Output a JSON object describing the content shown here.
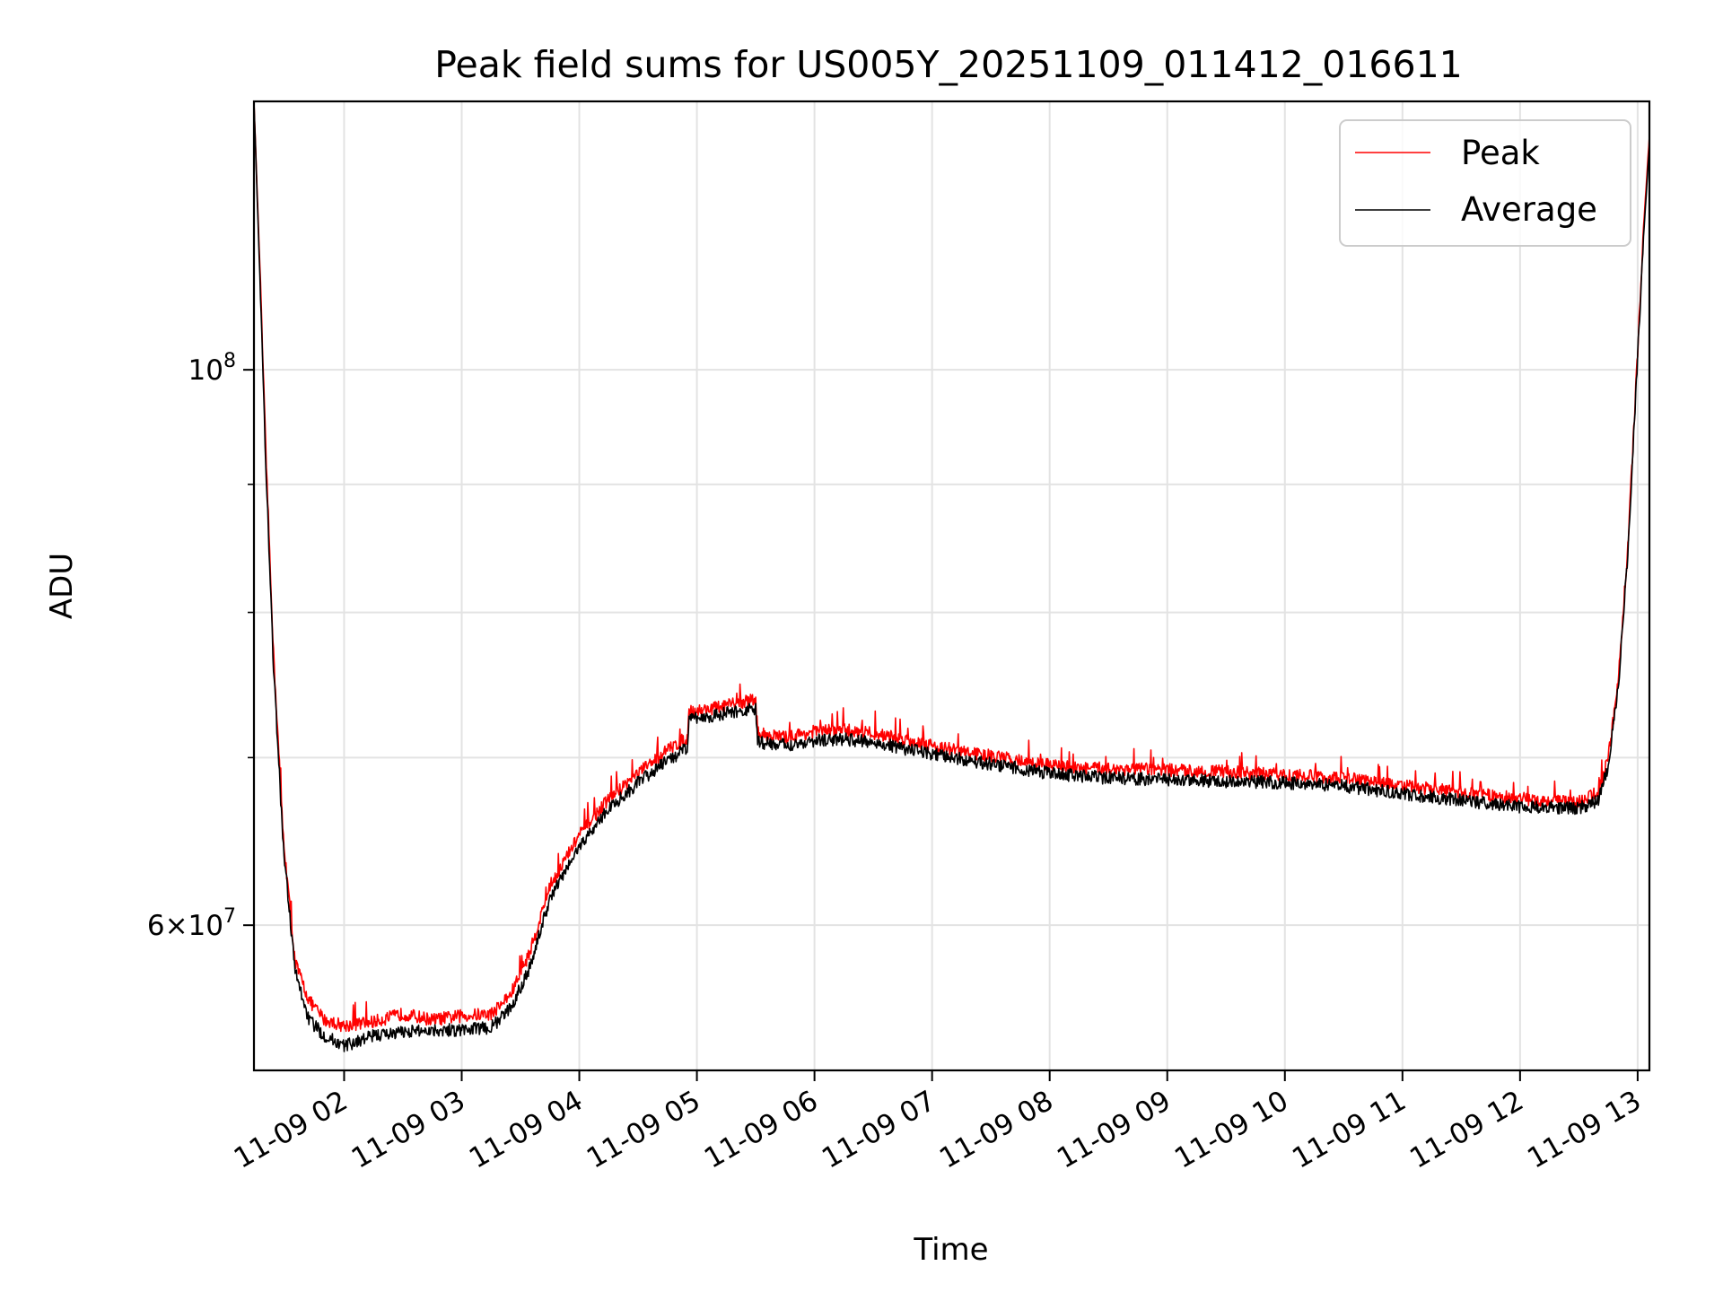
{
  "chart_data": {
    "type": "line",
    "title": "Peak field sums for US005Y_20251109_011412_016611",
    "xlabel": "Time",
    "ylabel": "ADU",
    "yscale": "log",
    "grid": true,
    "legend_position": "upper right",
    "x_range": [
      "2025-11-09 01:14",
      "2025-11-09 13:06"
    ],
    "y_range": [
      52500000,
      128000000
    ],
    "x_ticks": [
      "11-09 02",
      "11-09 03",
      "11-09 04",
      "11-09 05",
      "11-09 06",
      "11-09 07",
      "11-09 08",
      "11-09 09",
      "11-09 10",
      "11-09 11",
      "11-09 12",
      "11-09 13"
    ],
    "x_tick_values": [
      "2025-11-09 02:00",
      "2025-11-09 03:00",
      "2025-11-09 04:00",
      "2025-11-09 05:00",
      "2025-11-09 06:00",
      "2025-11-09 07:00",
      "2025-11-09 08:00",
      "2025-11-09 09:00",
      "2025-11-09 10:00",
      "2025-11-09 11:00",
      "2025-11-09 12:00",
      "2025-11-09 13:00"
    ],
    "y_ticks": [
      {
        "value": 100000000,
        "mantissa": "",
        "exp": "8"
      },
      {
        "value": 60000000,
        "mantissa": "6",
        "exp": "7"
      }
    ],
    "y_minor_ticks": [
      70000000,
      80000000,
      90000000
    ],
    "series": [
      {
        "name": "Peak",
        "color": "#ff0000",
        "points": [
          [
            "2025-11-09 01:14",
            128000000
          ],
          [
            "2025-11-09 01:17",
            110000000
          ],
          [
            "2025-11-09 01:20",
            93000000
          ],
          [
            "2025-11-09 01:24",
            77000000
          ],
          [
            "2025-11-09 01:29",
            65000000
          ],
          [
            "2025-11-09 01:35",
            58000000
          ],
          [
            "2025-11-09 01:42",
            56000000
          ],
          [
            "2025-11-09 01:50",
            55000000
          ],
          [
            "2025-11-09 02:00",
            54700000
          ],
          [
            "2025-11-09 02:15",
            54900000
          ],
          [
            "2025-11-09 02:30",
            55300000
          ],
          [
            "2025-11-09 02:45",
            55000000
          ],
          [
            "2025-11-09 03:00",
            55200000
          ],
          [
            "2025-11-09 03:15",
            55300000
          ],
          [
            "2025-11-09 03:25",
            56300000
          ],
          [
            "2025-11-09 03:35",
            58600000
          ],
          [
            "2025-11-09 03:45",
            62200000
          ],
          [
            "2025-11-09 04:00",
            65200000
          ],
          [
            "2025-11-09 04:15",
            67400000
          ],
          [
            "2025-11-09 04:30",
            69000000
          ],
          [
            "2025-11-09 04:45",
            70500000
          ],
          [
            "2025-11-09 04:55",
            71300000
          ],
          [
            "2025-11-09 04:56",
            73000000
          ],
          [
            "2025-11-09 05:15",
            73400000
          ],
          [
            "2025-11-09 05:30",
            73900000
          ],
          [
            "2025-11-09 05:31",
            71600000
          ],
          [
            "2025-11-09 05:45",
            71300000
          ],
          [
            "2025-11-09 06:00",
            71700000
          ],
          [
            "2025-11-09 06:15",
            71800000
          ],
          [
            "2025-11-09 06:30",
            71600000
          ],
          [
            "2025-11-09 06:45",
            71200000
          ],
          [
            "2025-11-09 07:00",
            70800000
          ],
          [
            "2025-11-09 07:15",
            70400000
          ],
          [
            "2025-11-09 07:30",
            70100000
          ],
          [
            "2025-11-09 07:45",
            69800000
          ],
          [
            "2025-11-09 08:00",
            69500000
          ],
          [
            "2025-11-09 08:20",
            69300000
          ],
          [
            "2025-11-09 08:30",
            69300000
          ],
          [
            "2025-11-09 09:00",
            69200000
          ],
          [
            "2025-11-09 09:30",
            69100000
          ],
          [
            "2025-11-09 10:00",
            68900000
          ],
          [
            "2025-11-09 10:30",
            68700000
          ],
          [
            "2025-11-09 11:00",
            68200000
          ],
          [
            "2025-11-09 11:30",
            67800000
          ],
          [
            "2025-11-09 12:00",
            67400000
          ],
          [
            "2025-11-09 12:30",
            67200000
          ],
          [
            "2025-11-09 12:40",
            67800000
          ],
          [
            "2025-11-09 12:45",
            70000000
          ],
          [
            "2025-11-09 12:50",
            75000000
          ],
          [
            "2025-11-09 12:55",
            85000000
          ],
          [
            "2025-11-09 12:59",
            98000000
          ],
          [
            "2025-11-09 13:03",
            114000000
          ],
          [
            "2025-11-09 13:06",
            124000000
          ]
        ]
      },
      {
        "name": "Average",
        "color": "#000000",
        "points": [
          [
            "2025-11-09 01:14",
            128000000
          ],
          [
            "2025-11-09 01:17",
            109000000
          ],
          [
            "2025-11-09 01:20",
            92000000
          ],
          [
            "2025-11-09 01:24",
            76000000
          ],
          [
            "2025-11-09 01:29",
            64500000
          ],
          [
            "2025-11-09 01:35",
            57500000
          ],
          [
            "2025-11-09 01:42",
            55000000
          ],
          [
            "2025-11-09 01:50",
            54200000
          ],
          [
            "2025-11-09 02:00",
            53700000
          ],
          [
            "2025-11-09 02:15",
            54200000
          ],
          [
            "2025-11-09 02:30",
            54400000
          ],
          [
            "2025-11-09 02:45",
            54500000
          ],
          [
            "2025-11-09 03:00",
            54500000
          ],
          [
            "2025-11-09 03:15",
            54600000
          ],
          [
            "2025-11-09 03:25",
            55600000
          ],
          [
            "2025-11-09 03:35",
            57800000
          ],
          [
            "2025-11-09 03:45",
            61500000
          ],
          [
            "2025-11-09 04:00",
            64500000
          ],
          [
            "2025-11-09 04:15",
            66800000
          ],
          [
            "2025-11-09 04:30",
            68400000
          ],
          [
            "2025-11-09 04:45",
            69800000
          ],
          [
            "2025-11-09 04:55",
            70600000
          ],
          [
            "2025-11-09 04:56",
            72500000
          ],
          [
            "2025-11-09 05:15",
            72900000
          ],
          [
            "2025-11-09 05:30",
            73200000
          ],
          [
            "2025-11-09 05:31",
            71000000
          ],
          [
            "2025-11-09 05:45",
            70800000
          ],
          [
            "2025-11-09 06:00",
            71100000
          ],
          [
            "2025-11-09 06:15",
            71200000
          ],
          [
            "2025-11-09 06:30",
            71000000
          ],
          [
            "2025-11-09 06:45",
            70600000
          ],
          [
            "2025-11-09 07:00",
            70200000
          ],
          [
            "2025-11-09 07:15",
            69900000
          ],
          [
            "2025-11-09 07:30",
            69600000
          ],
          [
            "2025-11-09 07:45",
            69300000
          ],
          [
            "2025-11-09 08:00",
            69000000
          ],
          [
            "2025-11-09 08:20",
            68800000
          ],
          [
            "2025-11-09 08:30",
            68700000
          ],
          [
            "2025-11-09 09:00",
            68600000
          ],
          [
            "2025-11-09 09:30",
            68500000
          ],
          [
            "2025-11-09 10:00",
            68400000
          ],
          [
            "2025-11-09 10:30",
            68200000
          ],
          [
            "2025-11-09 11:00",
            67700000
          ],
          [
            "2025-11-09 11:30",
            67300000
          ],
          [
            "2025-11-09 12:00",
            66900000
          ],
          [
            "2025-11-09 12:30",
            66800000
          ],
          [
            "2025-11-09 12:40",
            67300000
          ],
          [
            "2025-11-09 12:45",
            69500000
          ],
          [
            "2025-11-09 12:50",
            74500000
          ],
          [
            "2025-11-09 12:55",
            84500000
          ],
          [
            "2025-11-09 12:59",
            97500000
          ],
          [
            "2025-11-09 13:03",
            113000000
          ],
          [
            "2025-11-09 13:06",
            123000000
          ]
        ]
      }
    ]
  }
}
